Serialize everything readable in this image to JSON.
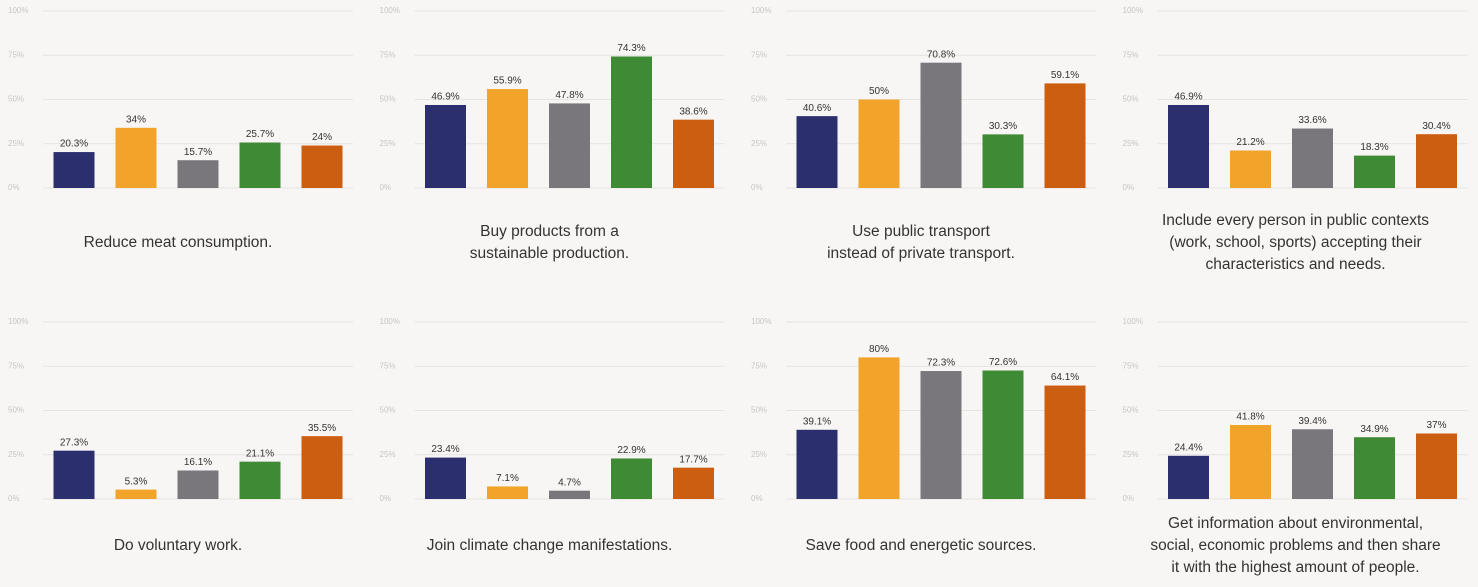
{
  "chart_data": [
    {
      "type": "bar",
      "title": [
        "Reduce meat consumption."
      ],
      "categories": [
        null,
        null,
        null,
        null,
        null
      ],
      "values": [
        20.3,
        34,
        15.7,
        25.7,
        24
      ],
      "value_labels": [
        "20.3%",
        "34%",
        "15.7%",
        "25.7%",
        "24%"
      ],
      "colors": [
        "#2b2f6e",
        "#f2a42a",
        "#7a777c",
        "#3f8a34",
        "#cc5e12"
      ],
      "ylim": [
        0,
        100
      ],
      "yticks": [
        {
          "value": 0,
          "label": "0%"
        },
        {
          "value": 25,
          "label": "25%"
        },
        {
          "value": 50,
          "label": "50%"
        },
        {
          "value": 75,
          "label": "75%"
        },
        {
          "value": 100,
          "label": "100%"
        }
      ],
      "grid": true
    },
    {
      "type": "bar",
      "title": [
        "Buy products from a",
        "sustainable production."
      ],
      "categories": [
        null,
        null,
        null,
        null,
        null
      ],
      "values": [
        46.9,
        55.9,
        47.8,
        74.3,
        38.6
      ],
      "value_labels": [
        "46.9%",
        "55.9%",
        "47.8%",
        "74.3%",
        "38.6%"
      ],
      "colors": [
        "#2b2f6e",
        "#f2a42a",
        "#7a777c",
        "#3f8a34",
        "#cc5e12"
      ],
      "ylim": [
        0,
        100
      ],
      "yticks": [
        {
          "value": 0,
          "label": "0%"
        },
        {
          "value": 25,
          "label": "25%"
        },
        {
          "value": 50,
          "label": "50%"
        },
        {
          "value": 75,
          "label": "75%"
        },
        {
          "value": 100,
          "label": "100%"
        }
      ],
      "grid": true
    },
    {
      "type": "bar",
      "title": [
        "Use public transport",
        "instead of private transport."
      ],
      "categories": [
        null,
        null,
        null,
        null,
        null
      ],
      "values": [
        40.6,
        50,
        70.8,
        30.3,
        59.1
      ],
      "value_labels": [
        "40.6%",
        "50%",
        "70.8%",
        "30.3%",
        "59.1%"
      ],
      "colors": [
        "#2b2f6e",
        "#f2a42a",
        "#7a777c",
        "#3f8a34",
        "#cc5e12"
      ],
      "ylim": [
        0,
        100
      ],
      "yticks": [
        {
          "value": 0,
          "label": "0%"
        },
        {
          "value": 25,
          "label": "25%"
        },
        {
          "value": 50,
          "label": "50%"
        },
        {
          "value": 75,
          "label": "75%"
        },
        {
          "value": 100,
          "label": "100%"
        }
      ],
      "grid": true
    },
    {
      "type": "bar",
      "title": [
        "Include every person in public contexts",
        "(work, school, sports) accepting their",
        "characteristics and needs."
      ],
      "categories": [
        null,
        null,
        null,
        null,
        null
      ],
      "values": [
        46.9,
        21.2,
        33.6,
        18.3,
        30.4
      ],
      "value_labels": [
        "46.9%",
        "21.2%",
        "33.6%",
        "18.3%",
        "30.4%"
      ],
      "colors": [
        "#2b2f6e",
        "#f2a42a",
        "#7a777c",
        "#3f8a34",
        "#cc5e12"
      ],
      "ylim": [
        0,
        100
      ],
      "yticks": [
        {
          "value": 0,
          "label": "0%"
        },
        {
          "value": 25,
          "label": "25%"
        },
        {
          "value": 50,
          "label": "50%"
        },
        {
          "value": 75,
          "label": "75%"
        },
        {
          "value": 100,
          "label": "100%"
        }
      ],
      "grid": true
    },
    {
      "type": "bar",
      "title": [
        "Do voluntary work."
      ],
      "categories": [
        null,
        null,
        null,
        null,
        null
      ],
      "values": [
        27.3,
        5.3,
        16.1,
        21.1,
        35.5
      ],
      "value_labels": [
        "27.3%",
        "5.3%",
        "16.1%",
        "21.1%",
        "35.5%"
      ],
      "colors": [
        "#2b2f6e",
        "#f2a42a",
        "#7a777c",
        "#3f8a34",
        "#cc5e12"
      ],
      "ylim": [
        0,
        100
      ],
      "yticks": [
        {
          "value": 0,
          "label": "0%"
        },
        {
          "value": 25,
          "label": "25%"
        },
        {
          "value": 50,
          "label": "50%"
        },
        {
          "value": 75,
          "label": "75%"
        },
        {
          "value": 100,
          "label": "100%"
        }
      ],
      "grid": true
    },
    {
      "type": "bar",
      "title": [
        "Join climate change manifestations."
      ],
      "categories": [
        null,
        null,
        null,
        null,
        null
      ],
      "values": [
        23.4,
        7.1,
        4.7,
        22.9,
        17.7
      ],
      "value_labels": [
        "23.4%",
        "7.1%",
        "4.7%",
        "22.9%",
        "17.7%"
      ],
      "colors": [
        "#2b2f6e",
        "#f2a42a",
        "#7a777c",
        "#3f8a34",
        "#cc5e12"
      ],
      "ylim": [
        0,
        100
      ],
      "yticks": [
        {
          "value": 0,
          "label": "0%"
        },
        {
          "value": 25,
          "label": "25%"
        },
        {
          "value": 50,
          "label": "50%"
        },
        {
          "value": 75,
          "label": "75%"
        },
        {
          "value": 100,
          "label": "100%"
        }
      ],
      "grid": true
    },
    {
      "type": "bar",
      "title": [
        "Save food and energetic sources."
      ],
      "categories": [
        null,
        null,
        null,
        null,
        null
      ],
      "values": [
        39.1,
        80,
        72.3,
        72.6,
        64.1
      ],
      "value_labels": [
        "39.1%",
        "80%",
        "72.3%",
        "72.6%",
        "64.1%"
      ],
      "colors": [
        "#2b2f6e",
        "#f2a42a",
        "#7a777c",
        "#3f8a34",
        "#cc5e12"
      ],
      "ylim": [
        0,
        100
      ],
      "yticks": [
        {
          "value": 0,
          "label": "0%"
        },
        {
          "value": 25,
          "label": "25%"
        },
        {
          "value": 50,
          "label": "50%"
        },
        {
          "value": 75,
          "label": "75%"
        },
        {
          "value": 100,
          "label": "100%"
        }
      ],
      "grid": true
    },
    {
      "type": "bar",
      "title": [
        "Get information about environmental,",
        "social, economic problems and then share",
        "it with the highest amount of people."
      ],
      "categories": [
        null,
        null,
        null,
        null,
        null
      ],
      "values": [
        24.4,
        41.8,
        39.4,
        34.9,
        37
      ],
      "value_labels": [
        "24.4%",
        "41.8%",
        "39.4%",
        "34.9%",
        "37%"
      ],
      "colors": [
        "#2b2f6e",
        "#f2a42a",
        "#7a777c",
        "#3f8a34",
        "#cc5e12"
      ],
      "ylim": [
        0,
        100
      ],
      "yticks": [
        {
          "value": 0,
          "label": "0%"
        },
        {
          "value": 25,
          "label": "25%"
        },
        {
          "value": 50,
          "label": "50%"
        },
        {
          "value": 75,
          "label": "75%"
        },
        {
          "value": 100,
          "label": "100%"
        }
      ],
      "grid": true
    }
  ]
}
